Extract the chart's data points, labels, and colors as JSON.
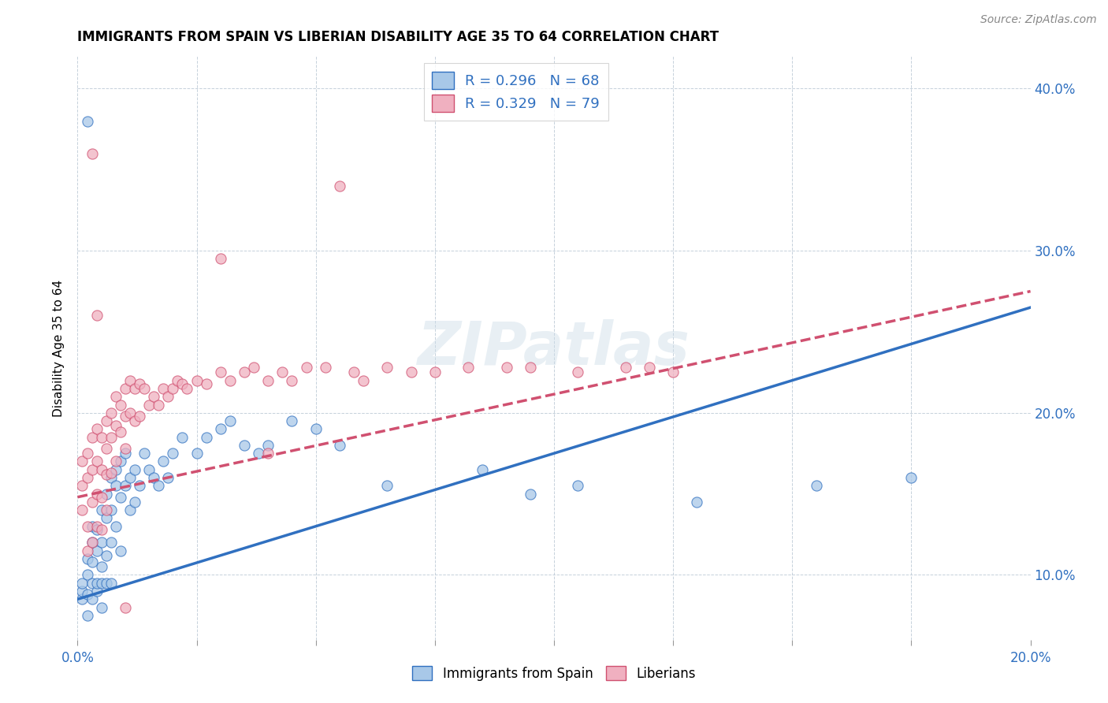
{
  "title": "IMMIGRANTS FROM SPAIN VS LIBERIAN DISABILITY AGE 35 TO 64 CORRELATION CHART",
  "source": "Source: ZipAtlas.com",
  "ylabel": "Disability Age 35 to 64",
  "blue_label": "Immigrants from Spain",
  "pink_label": "Liberians",
  "blue_R": "0.296",
  "blue_N": "68",
  "pink_R": "0.329",
  "pink_N": "79",
  "blue_color": "#a8c8e8",
  "pink_color": "#f0b0c0",
  "blue_line_color": "#3070c0",
  "pink_line_color": "#d05070",
  "legend_text_color": "#3070c0",
  "watermark": "ZIPatlas",
  "xlim": [
    0.0,
    0.2
  ],
  "ylim": [
    0.06,
    0.42
  ],
  "x_ticks": [
    0.0,
    0.025,
    0.05,
    0.075,
    0.1,
    0.125,
    0.15,
    0.175,
    0.2
  ],
  "y_ticks": [
    0.1,
    0.2,
    0.3,
    0.4
  ],
  "blue_line_x0": 0.0,
  "blue_line_y0": 0.085,
  "blue_line_x1": 0.2,
  "blue_line_y1": 0.265,
  "pink_line_x0": 0.0,
  "pink_line_y0": 0.148,
  "pink_line_x1": 0.2,
  "pink_line_y1": 0.275,
  "blue_scatter_x": [
    0.001,
    0.001,
    0.001,
    0.002,
    0.002,
    0.002,
    0.002,
    0.003,
    0.003,
    0.003,
    0.003,
    0.003,
    0.004,
    0.004,
    0.004,
    0.004,
    0.005,
    0.005,
    0.005,
    0.005,
    0.005,
    0.006,
    0.006,
    0.006,
    0.006,
    0.007,
    0.007,
    0.007,
    0.007,
    0.008,
    0.008,
    0.008,
    0.009,
    0.009,
    0.009,
    0.01,
    0.01,
    0.011,
    0.011,
    0.012,
    0.012,
    0.013,
    0.014,
    0.015,
    0.016,
    0.017,
    0.018,
    0.019,
    0.02,
    0.022,
    0.025,
    0.027,
    0.03,
    0.032,
    0.035,
    0.038,
    0.04,
    0.045,
    0.05,
    0.055,
    0.065,
    0.085,
    0.095,
    0.105,
    0.13,
    0.155,
    0.175,
    0.002
  ],
  "blue_scatter_y": [
    0.085,
    0.09,
    0.095,
    0.1,
    0.088,
    0.11,
    0.075,
    0.12,
    0.095,
    0.108,
    0.085,
    0.13,
    0.115,
    0.09,
    0.128,
    0.095,
    0.14,
    0.105,
    0.095,
    0.12,
    0.08,
    0.135,
    0.15,
    0.112,
    0.095,
    0.16,
    0.14,
    0.12,
    0.095,
    0.155,
    0.165,
    0.13,
    0.17,
    0.148,
    0.115,
    0.155,
    0.175,
    0.16,
    0.14,
    0.165,
    0.145,
    0.155,
    0.175,
    0.165,
    0.16,
    0.155,
    0.17,
    0.16,
    0.175,
    0.185,
    0.175,
    0.185,
    0.19,
    0.195,
    0.18,
    0.175,
    0.18,
    0.195,
    0.19,
    0.18,
    0.155,
    0.165,
    0.15,
    0.155,
    0.145,
    0.155,
    0.16,
    0.38
  ],
  "pink_scatter_x": [
    0.001,
    0.001,
    0.001,
    0.002,
    0.002,
    0.002,
    0.002,
    0.003,
    0.003,
    0.003,
    0.003,
    0.004,
    0.004,
    0.004,
    0.004,
    0.005,
    0.005,
    0.005,
    0.005,
    0.006,
    0.006,
    0.006,
    0.006,
    0.007,
    0.007,
    0.007,
    0.008,
    0.008,
    0.008,
    0.009,
    0.009,
    0.01,
    0.01,
    0.01,
    0.011,
    0.011,
    0.012,
    0.012,
    0.013,
    0.013,
    0.014,
    0.015,
    0.016,
    0.017,
    0.018,
    0.019,
    0.02,
    0.021,
    0.022,
    0.023,
    0.025,
    0.027,
    0.03,
    0.032,
    0.035,
    0.037,
    0.04,
    0.043,
    0.045,
    0.048,
    0.052,
    0.058,
    0.06,
    0.065,
    0.07,
    0.075,
    0.082,
    0.09,
    0.095,
    0.105,
    0.115,
    0.12,
    0.125,
    0.03,
    0.04,
    0.055,
    0.01,
    0.003,
    0.004
  ],
  "pink_scatter_y": [
    0.17,
    0.155,
    0.14,
    0.175,
    0.16,
    0.13,
    0.115,
    0.185,
    0.165,
    0.145,
    0.12,
    0.19,
    0.17,
    0.15,
    0.13,
    0.185,
    0.165,
    0.148,
    0.128,
    0.195,
    0.178,
    0.162,
    0.14,
    0.2,
    0.185,
    0.163,
    0.21,
    0.192,
    0.17,
    0.205,
    0.188,
    0.215,
    0.198,
    0.178,
    0.22,
    0.2,
    0.215,
    0.195,
    0.218,
    0.198,
    0.215,
    0.205,
    0.21,
    0.205,
    0.215,
    0.21,
    0.215,
    0.22,
    0.218,
    0.215,
    0.22,
    0.218,
    0.225,
    0.22,
    0.225,
    0.228,
    0.22,
    0.225,
    0.22,
    0.228,
    0.228,
    0.225,
    0.22,
    0.228,
    0.225,
    0.225,
    0.228,
    0.228,
    0.228,
    0.225,
    0.228,
    0.228,
    0.225,
    0.295,
    0.175,
    0.34,
    0.08,
    0.36,
    0.26
  ]
}
